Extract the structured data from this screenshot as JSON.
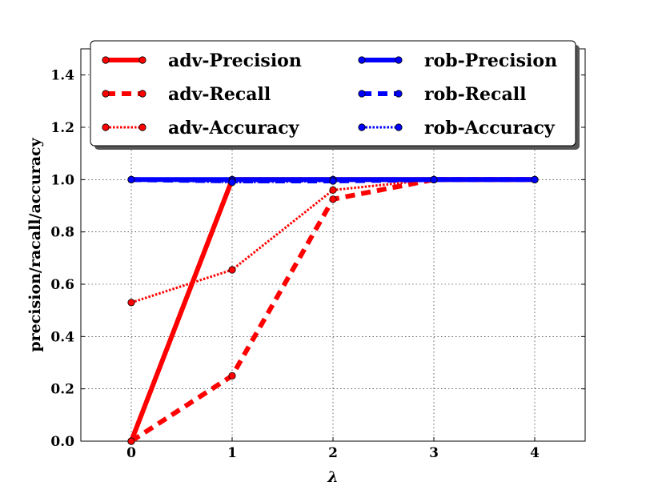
{
  "chart_data": {
    "type": "line",
    "xlabel": "λ",
    "ylabel": "precision/racall/accuracy",
    "xlim": [
      -0.5,
      4.5
    ],
    "ylim": [
      0.0,
      1.5
    ],
    "xticks": [
      "0",
      "1",
      "2",
      "3",
      "4"
    ],
    "yticks": [
      "0.0",
      "0.2",
      "0.4",
      "0.6",
      "0.8",
      "1.0",
      "1.2",
      "1.4"
    ],
    "grid": true,
    "legend_position": "top",
    "series": [
      {
        "name": "adv-Precision",
        "color": "#ff0000",
        "style": "solid",
        "x": [
          0,
          1,
          2,
          3,
          4
        ],
        "values": [
          0.0,
          1.0,
          1.0,
          1.0,
          1.0
        ]
      },
      {
        "name": "adv-Recall",
        "color": "#ff0000",
        "style": "dashed",
        "x": [
          0,
          1,
          2,
          3,
          4
        ],
        "values": [
          0.0,
          0.25,
          0.925,
          1.0,
          1.0
        ]
      },
      {
        "name": "adv-Accuracy",
        "color": "#ff0000",
        "style": "dotted",
        "x": [
          0,
          1,
          2,
          3,
          4
        ],
        "values": [
          0.53,
          0.655,
          0.96,
          1.0,
          1.0
        ]
      },
      {
        "name": "rob-Precision",
        "color": "#0000ff",
        "style": "solid",
        "x": [
          0,
          1,
          2,
          3,
          4
        ],
        "values": [
          1.0,
          1.0,
          1.0,
          1.0,
          1.0
        ]
      },
      {
        "name": "rob-Recall",
        "color": "#0000ff",
        "style": "dashed",
        "x": [
          0,
          1,
          2,
          3,
          4
        ],
        "values": [
          1.0,
          0.995,
          0.995,
          1.0,
          1.0
        ]
      },
      {
        "name": "rob-Accuracy",
        "color": "#0000ff",
        "style": "dotted",
        "x": [
          0,
          1,
          2,
          3,
          4
        ],
        "values": [
          1.0,
          0.99,
          0.995,
          1.0,
          1.0
        ]
      }
    ]
  }
}
